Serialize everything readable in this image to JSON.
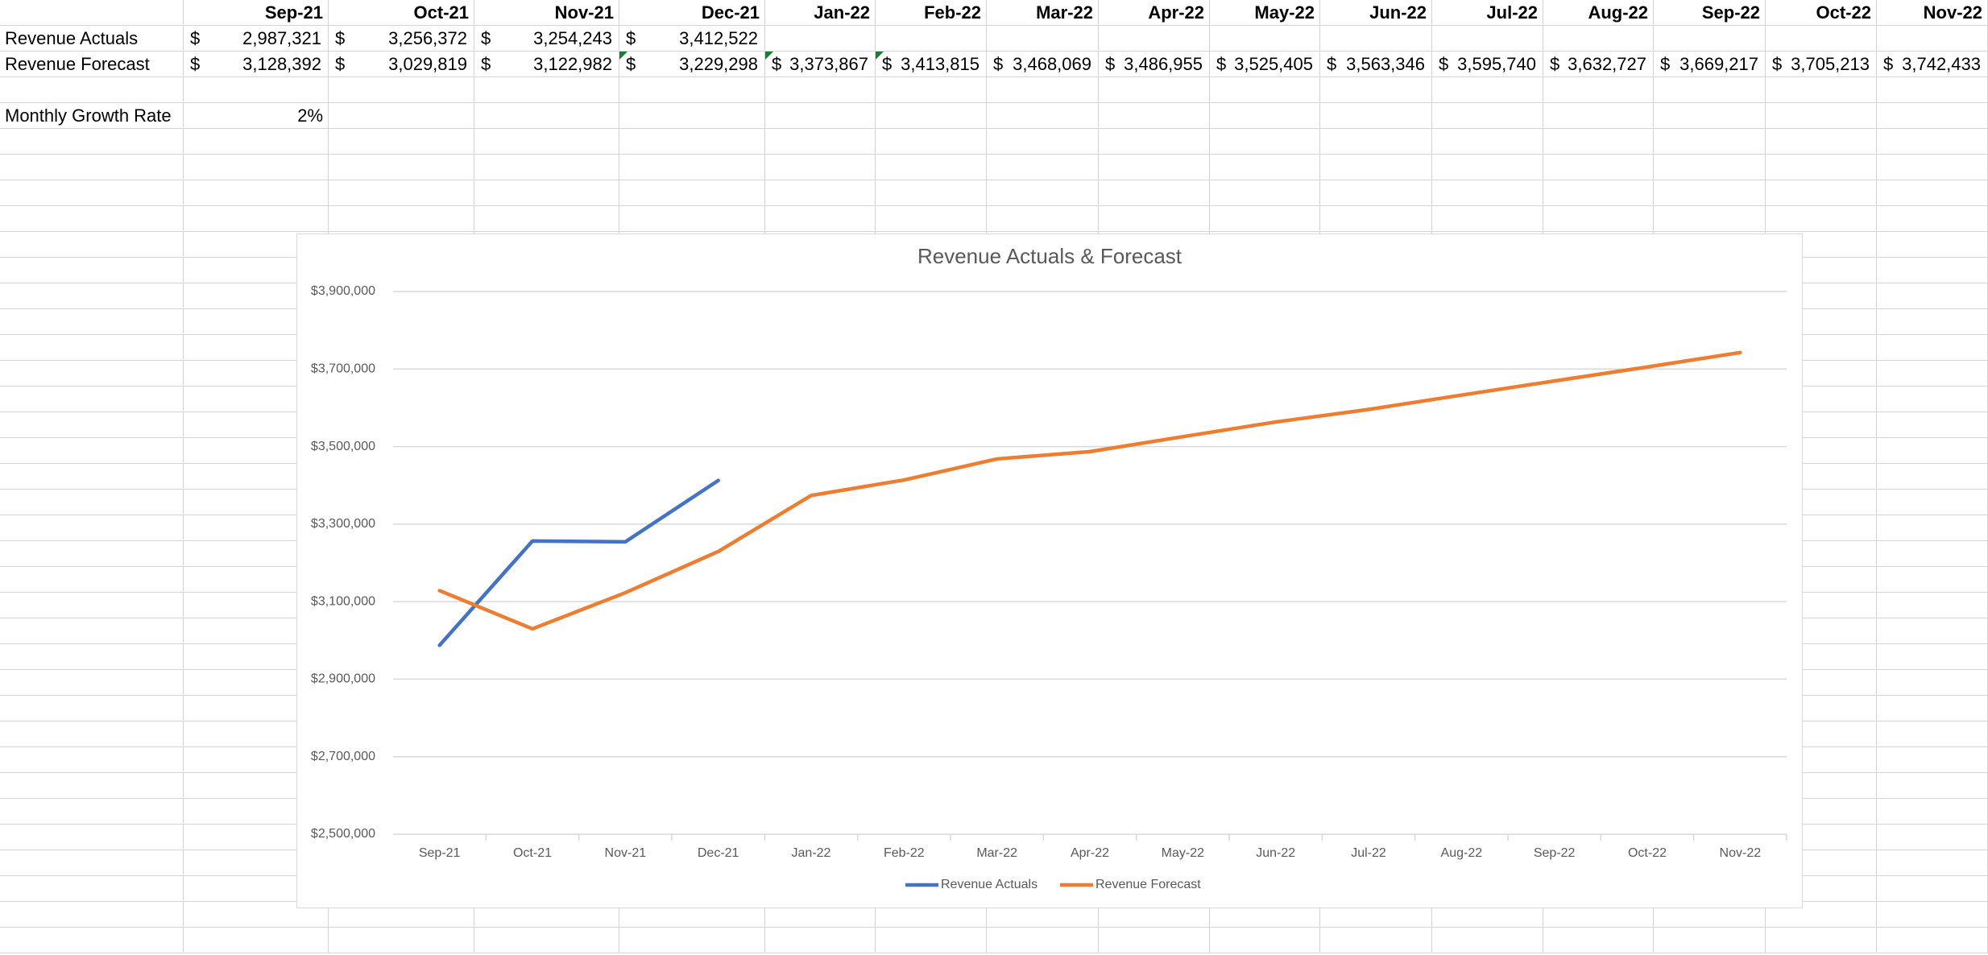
{
  "table": {
    "header": [
      "Sep-21",
      "Oct-21",
      "Nov-21",
      "Dec-21",
      "Jan-22",
      "Feb-22",
      "Mar-22",
      "Apr-22",
      "May-22",
      "Jun-22",
      "Jul-22",
      "Aug-22",
      "Sep-22",
      "Oct-22",
      "Nov-22"
    ],
    "rows": [
      {
        "label": "Revenue Actuals",
        "cells": [
          {
            "symbol": "$",
            "amount": "2,987,321"
          },
          {
            "symbol": "$",
            "amount": "3,256,372"
          },
          {
            "symbol": "$",
            "amount": "3,254,243"
          },
          {
            "symbol": "$",
            "amount": "3,412,522"
          }
        ]
      },
      {
        "label": "Revenue Forecast",
        "cells": [
          {
            "symbol": "$",
            "amount": "3,128,392"
          },
          {
            "symbol": "$",
            "amount": "3,029,819"
          },
          {
            "symbol": "$",
            "amount": "3,122,982"
          },
          {
            "symbol": "$",
            "amount": "3,229,298"
          },
          {
            "symbol": "$",
            "amount": "3,373,867"
          },
          {
            "symbol": "$",
            "amount": "3,413,815"
          },
          {
            "symbol": "$",
            "amount": "3,468,069"
          },
          {
            "symbol": "$",
            "amount": "3,486,955"
          },
          {
            "symbol": "$",
            "amount": "3,525,405"
          },
          {
            "symbol": "$",
            "amount": "3,563,346"
          },
          {
            "symbol": "$",
            "amount": "3,595,740"
          },
          {
            "symbol": "$",
            "amount": "3,632,727"
          },
          {
            "symbol": "$",
            "amount": "3,669,217"
          },
          {
            "symbol": "$",
            "amount": "3,705,213"
          },
          {
            "symbol": "$",
            "amount": "3,742,433"
          }
        ]
      },
      {
        "label": "Monthly Growth Rate",
        "value": "2%"
      }
    ]
  },
  "chart_data": {
    "type": "line",
    "title": "Revenue Actuals & Forecast",
    "categories": [
      "Sep-21",
      "Oct-21",
      "Nov-21",
      "Dec-21",
      "Jan-22",
      "Feb-22",
      "Mar-22",
      "Apr-22",
      "May-22",
      "Jun-22",
      "Jul-22",
      "Aug-22",
      "Sep-22",
      "Oct-22",
      "Nov-22"
    ],
    "series": [
      {
        "name": "Revenue Actuals",
        "color": "#4472c4",
        "values": [
          2987321,
          3256372,
          3254243,
          3412522,
          null,
          null,
          null,
          null,
          null,
          null,
          null,
          null,
          null,
          null,
          null
        ]
      },
      {
        "name": "Revenue Forecast",
        "color": "#ed7d31",
        "values": [
          3128392,
          3029819,
          3122982,
          3229298,
          3373867,
          3413815,
          3468069,
          3486955,
          3525405,
          3563346,
          3595740,
          3632727,
          3669217,
          3705213,
          3742433
        ]
      }
    ],
    "ylim": [
      2500000,
      3900000
    ],
    "yticks": [
      {
        "value": 2500000,
        "label": "$2,500,000"
      },
      {
        "value": 2700000,
        "label": "$2,700,000"
      },
      {
        "value": 2900000,
        "label": "$2,900,000"
      },
      {
        "value": 3100000,
        "label": "$3,100,000"
      },
      {
        "value": 3300000,
        "label": "$3,300,000"
      },
      {
        "value": 3500000,
        "label": "$3,500,000"
      },
      {
        "value": 3700000,
        "label": "$3,700,000"
      },
      {
        "value": 3900000,
        "label": "$3,900,000"
      }
    ],
    "grid": true,
    "legend": "bottom"
  }
}
